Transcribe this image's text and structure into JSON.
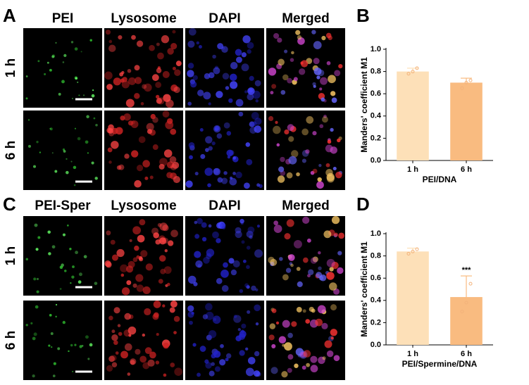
{
  "panels": {
    "a": "A",
    "b": "B",
    "c": "C",
    "d": "D"
  },
  "image_grid": [
    {
      "columns": [
        "PEI",
        "Lysosome",
        "DAPI",
        "Merged"
      ],
      "rows": [
        "1 h",
        "6 h"
      ]
    },
    {
      "columns": [
        "PEI-Sper",
        "Lysosome",
        "DAPI",
        "Merged"
      ],
      "rows": [
        "1 h",
        "6 h"
      ]
    }
  ],
  "chart_data": [
    {
      "type": "bar",
      "categories": [
        "1 h",
        "6 h"
      ],
      "values": [
        0.8,
        0.7
      ],
      "errors": [
        0.03,
        0.04
      ],
      "points": [
        [
          0.78,
          0.8,
          0.83
        ],
        [
          0.65,
          0.7,
          0.72
        ]
      ],
      "colors": [
        "#fde0b8",
        "#f9bb80"
      ],
      "xlabel": "PEI/DNA",
      "ylabel": "Manders' coefficient M1",
      "ylim": [
        0,
        1
      ],
      "yticks": [
        {
          "value": 0,
          "label": "0.0"
        },
        0.2,
        0.4,
        0.6,
        0.8,
        {
          "value": 1,
          "label": "1.0"
        }
      ]
    },
    {
      "type": "bar",
      "categories": [
        "1 h",
        "6 h"
      ],
      "values": [
        0.84,
        0.43
      ],
      "errors": [
        0.03,
        0.19
      ],
      "points": [
        [
          0.82,
          0.84,
          0.86
        ],
        [
          0.3,
          0.38,
          0.55
        ]
      ],
      "colors": [
        "#fde0b8",
        "#f9bb80"
      ],
      "annotations": [
        null,
        "***"
      ],
      "xlabel": "PEI/Spermine/DNA",
      "ylabel": "Manders' coefficient M1",
      "ylim": [
        0,
        1
      ],
      "yticks": [
        {
          "value": 0,
          "label": "0.0"
        },
        0.2,
        0.4,
        0.6,
        0.8,
        {
          "value": 1,
          "label": "1.0"
        }
      ]
    }
  ]
}
